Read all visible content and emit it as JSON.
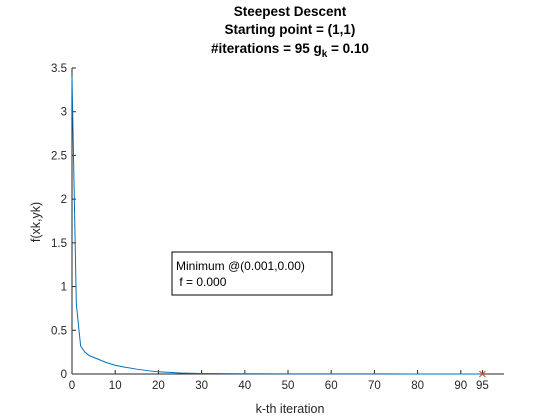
{
  "chart_data": {
    "type": "line",
    "title_lines": [
      "Steepest Descent",
      "Starting point = (1,1)"
    ],
    "title_iter_prefix": "#iterations = 95 g",
    "title_iter_sub": "k",
    "title_iter_suffix": " = 0.10",
    "xlabel": "k-th iteration",
    "ylabel": "f(xk,yk)",
    "xlim": [
      0,
      100
    ],
    "ylim": [
      0,
      3.5
    ],
    "xticks": [
      0,
      10,
      20,
      30,
      40,
      50,
      60,
      70,
      80,
      90,
      95
    ],
    "xtick_labels": [
      "0",
      "10",
      "20",
      "30",
      "40",
      "50",
      "60",
      "70",
      "80",
      "90",
      "95"
    ],
    "yticks": [
      0,
      0.5,
      1,
      1.5,
      2,
      2.5,
      3,
      3.5
    ],
    "ytick_labels": [
      "0",
      "0.5",
      "1",
      "1.5",
      "2",
      "2.5",
      "3",
      "3.5"
    ],
    "grid": false,
    "line_color": "#0072BD",
    "marker_color": "#D95319",
    "series": [
      {
        "x": [
          0,
          1,
          2,
          3,
          4,
          5,
          6,
          8,
          10,
          12,
          15,
          18,
          20,
          25,
          30,
          35,
          40,
          50,
          60,
          70,
          80,
          90,
          95
        ],
        "y": [
          3.4,
          0.8,
          0.32,
          0.25,
          0.21,
          0.19,
          0.17,
          0.13,
          0.1,
          0.08,
          0.055,
          0.035,
          0.025,
          0.012,
          0.006,
          0.004,
          0.003,
          0.002,
          0.001,
          0.001,
          0.0005,
          0.0002,
          0.0
        ]
      }
    ],
    "end_marker": {
      "x": 95,
      "y": 0.0
    },
    "annotation": {
      "line1": "Minimum @(0.001,0.00)",
      "line2": " f = 0.000"
    }
  }
}
